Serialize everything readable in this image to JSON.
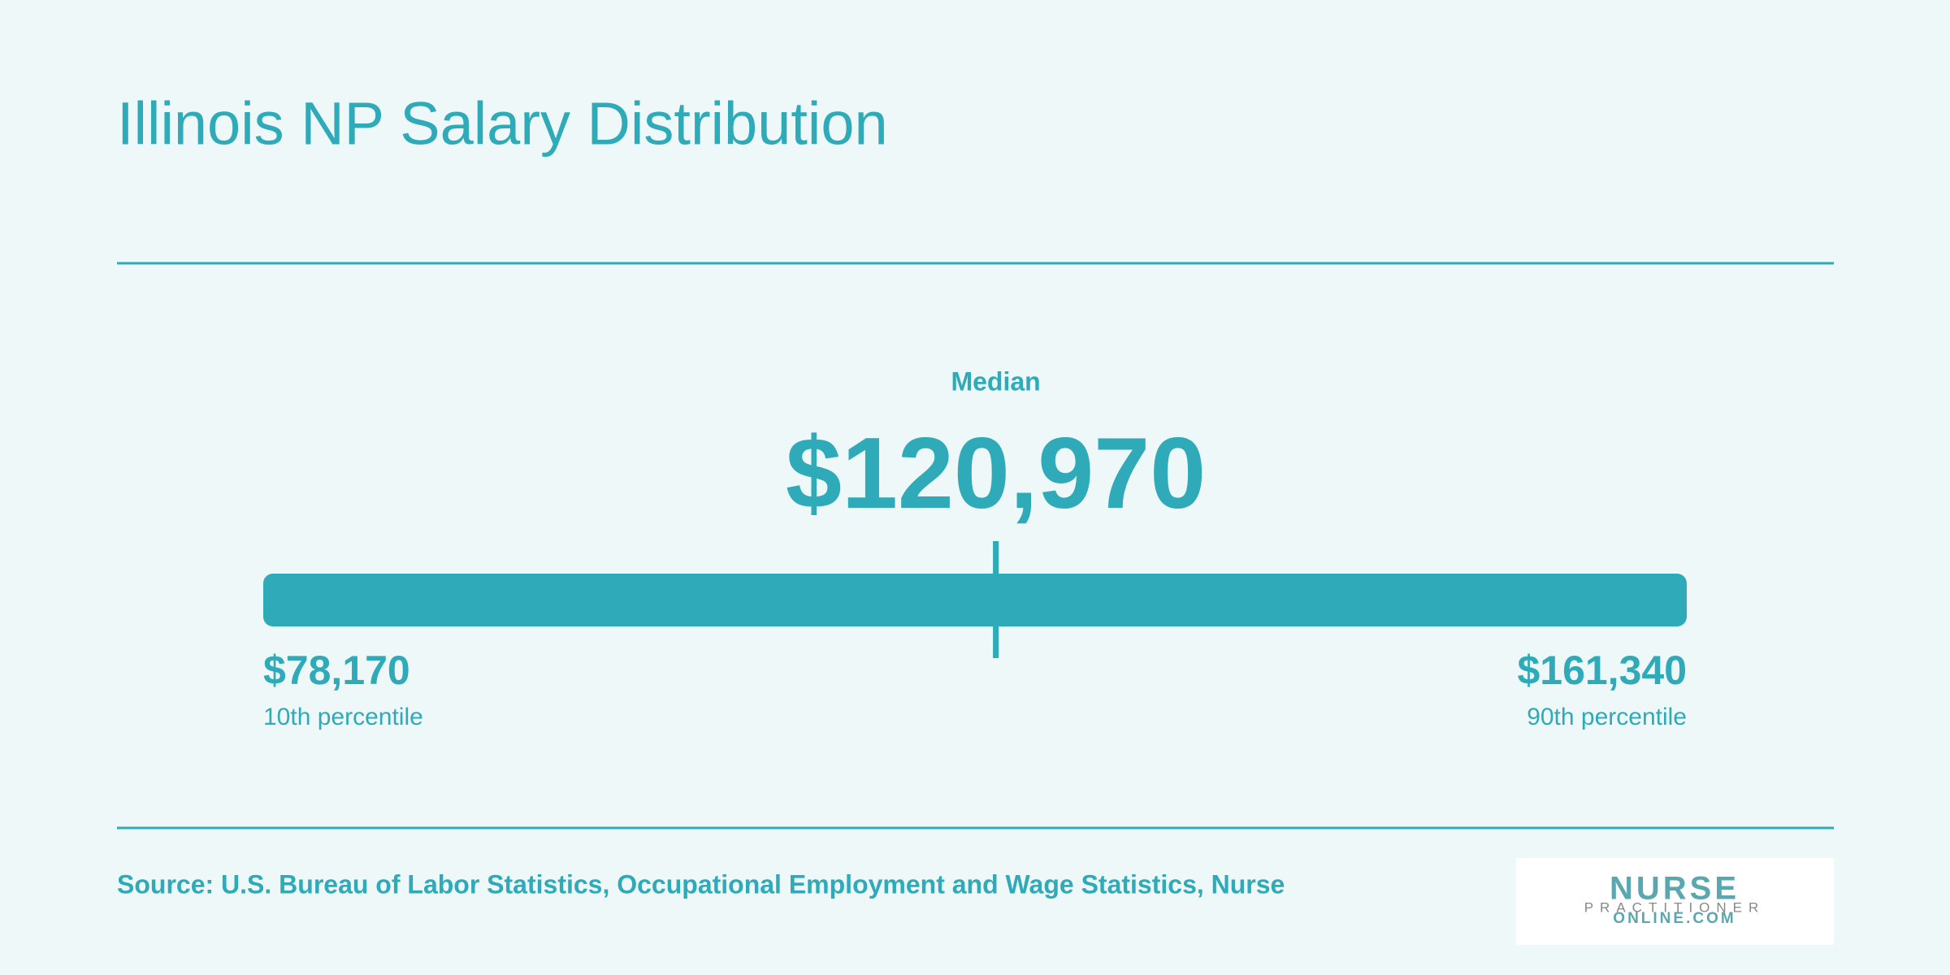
{
  "chart_data": {
    "type": "range",
    "title": "Illinois NP Salary Distribution",
    "categories": [
      "10th percentile",
      "Median",
      "90th percentile"
    ],
    "values": [
      78170,
      120970,
      161340
    ],
    "value_labels": [
      "$78,170",
      "$120,970",
      "$161,340"
    ],
    "color": "#2eaab8",
    "source": "Source: U.S. Bureau of Labor Statistics, Occupational Employment and Wage Statistics, Nurse"
  },
  "logo": {
    "line1": "NURSE",
    "line2": "PRACTITIONER",
    "line3": "ONLINE.COM"
  }
}
